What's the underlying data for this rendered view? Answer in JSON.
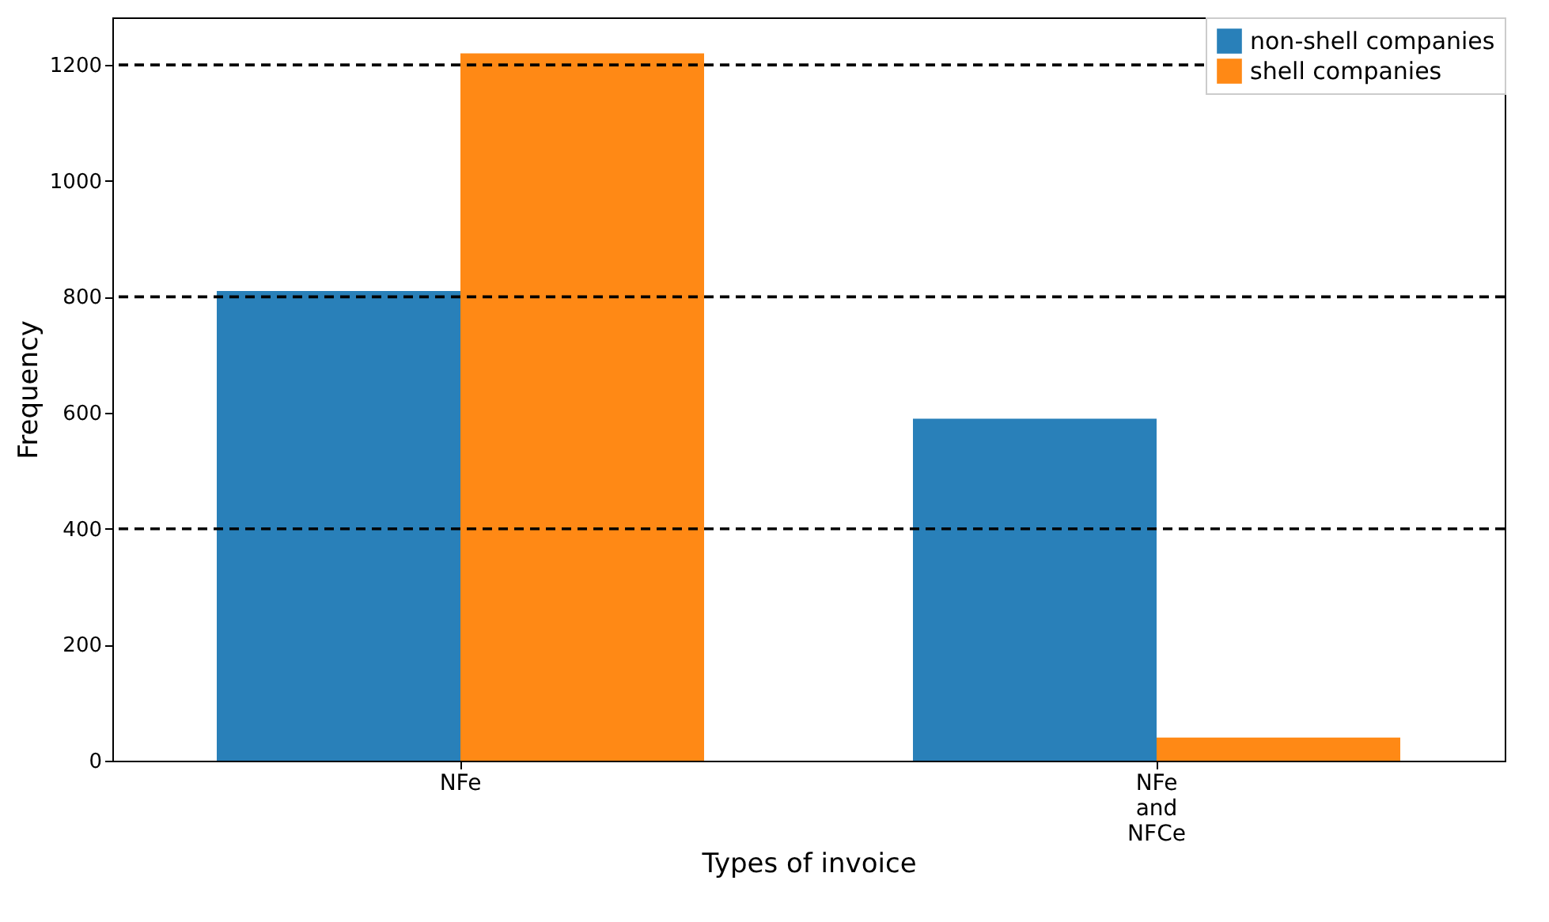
{
  "chart_data": {
    "type": "bar",
    "xlabel": "Types of invoice",
    "ylabel": "Frequency",
    "categories": [
      "NFe",
      "NFe\nand\nNFCe"
    ],
    "series": [
      {
        "name": "non-shell companies",
        "color": "#2980b9",
        "values": [
          810,
          590
        ]
      },
      {
        "name": "shell companies",
        "color": "#ff8915",
        "values": [
          1220,
          40
        ]
      }
    ],
    "ylim": [
      0,
      1282
    ],
    "yticks": [
      0,
      200,
      400,
      600,
      800,
      1000,
      1200
    ],
    "grid": false,
    "legend": "top right",
    "ref_lines": [
      {
        "axis": "y",
        "value": 400,
        "color": "#000000",
        "line_style": "dashed"
      },
      {
        "axis": "y",
        "value": 800,
        "color": "#000000",
        "line_style": "dashed"
      },
      {
        "axis": "y",
        "value": 1200,
        "color": "#000000",
        "line_style": "dashed"
      }
    ]
  }
}
